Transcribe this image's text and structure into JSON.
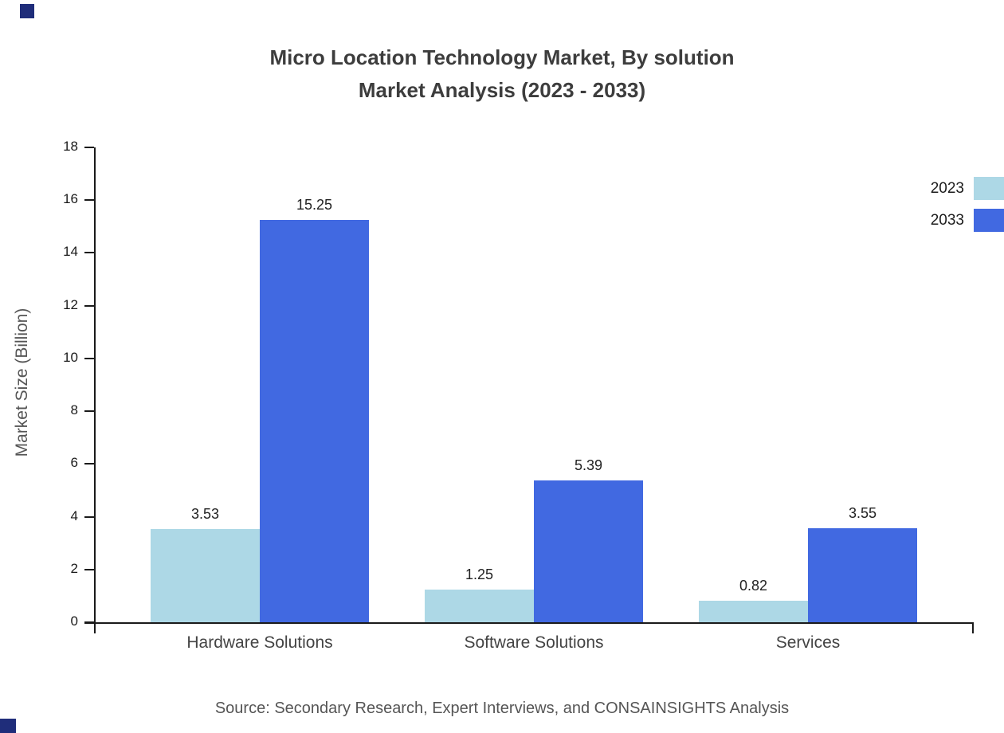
{
  "title": {
    "line1": "Micro Location Technology Market, By solution",
    "line2": "Market Analysis (2023 - 2033)"
  },
  "source": "Source: Secondary Research, Expert Interviews, and CONSAINSIGHTS Analysis",
  "colors": {
    "series_2023": "#ADD8E6",
    "series_2033": "#4169E1",
    "axis": "#1a1a1a",
    "corner_mark": "#1f2d7a"
  },
  "chart_data": {
    "type": "bar",
    "categories": [
      "Hardware Solutions",
      "Software Solutions",
      "Services"
    ],
    "series": [
      {
        "name": "2023",
        "color": "#ADD8E6",
        "values": [
          3.53,
          1.25,
          0.82
        ]
      },
      {
        "name": "2033",
        "color": "#4169E1",
        "values": [
          15.25,
          5.39,
          3.55
        ]
      }
    ],
    "title": "Micro Location Technology Market, By solution Market Analysis (2023 - 2033)",
    "xlabel": "",
    "ylabel": "Market Size (Billion)",
    "ylim": [
      0,
      18
    ],
    "ytick_step": 2,
    "grid": false,
    "legend_position": "top-right",
    "value_labels": true
  }
}
